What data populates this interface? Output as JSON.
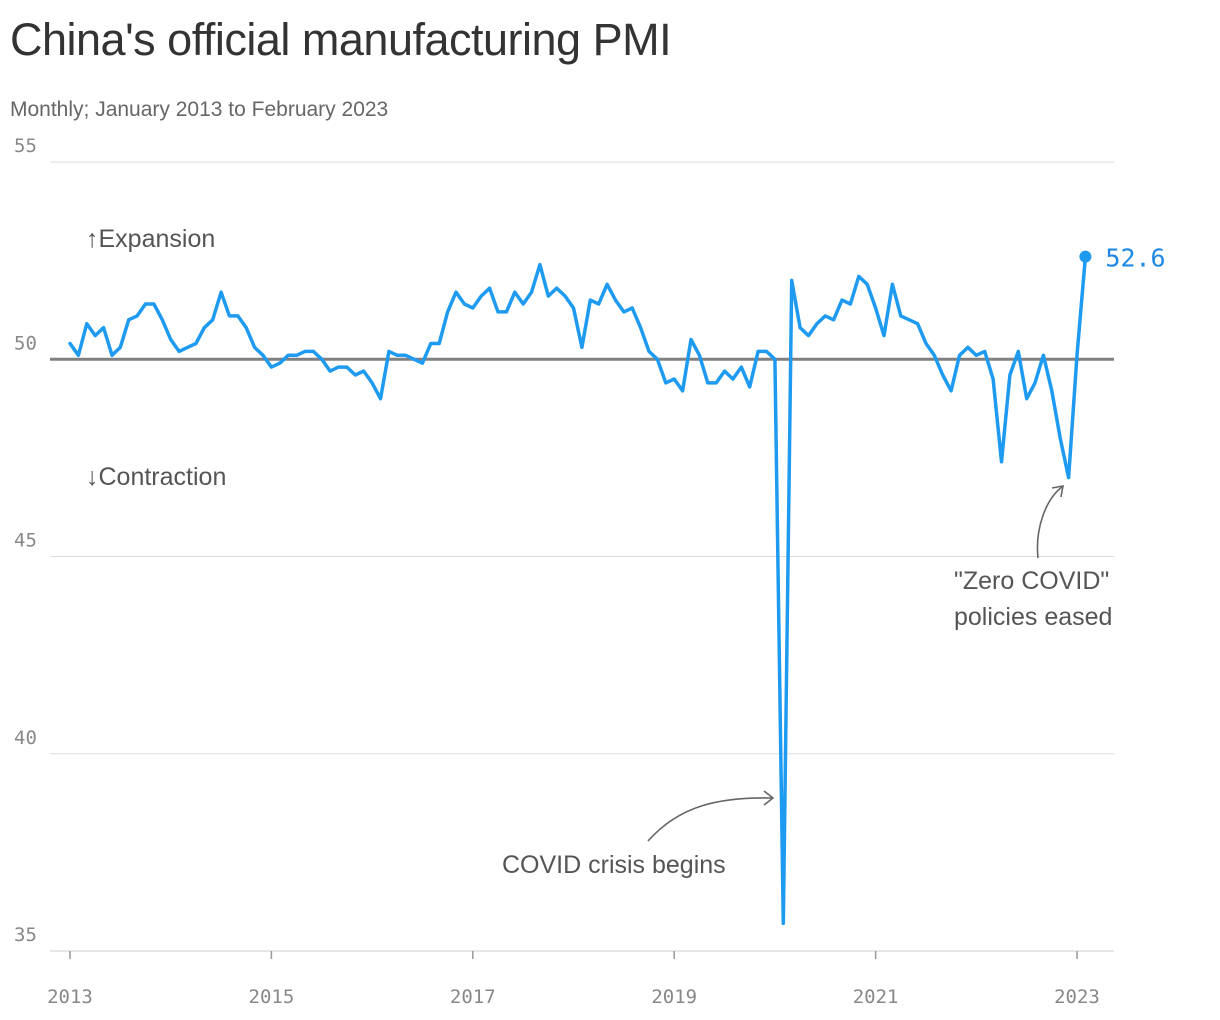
{
  "chart_data": {
    "type": "line",
    "title": "China's official manufacturing PMI",
    "subtitle": "Monthly; January 2013 to February 2023",
    "ylim": [
      35,
      55
    ],
    "y_ticks": [
      35,
      40,
      45,
      50,
      55
    ],
    "x_ticks": [
      {
        "year": 2013,
        "label": "2013"
      },
      {
        "year": 2015,
        "label": "2015"
      },
      {
        "year": 2017,
        "label": "2017"
      },
      {
        "year": 2019,
        "label": "2019"
      },
      {
        "year": 2021,
        "label": "2021"
      },
      {
        "year": 2023,
        "label": "2023"
      }
    ],
    "reference_value": 50,
    "grid": true,
    "series": [
      {
        "color": "#1e9bf0",
        "start": "2013-01",
        "end": "2023-02",
        "values": [
          50.4,
          50.1,
          50.9,
          50.6,
          50.8,
          50.1,
          50.3,
          51.0,
          51.1,
          51.4,
          51.4,
          51.0,
          50.5,
          50.2,
          50.3,
          50.4,
          50.8,
          51.0,
          51.7,
          51.1,
          51.1,
          50.8,
          50.3,
          50.1,
          49.8,
          49.9,
          50.1,
          50.1,
          50.2,
          50.2,
          50.0,
          49.7,
          49.8,
          49.8,
          49.6,
          49.7,
          49.4,
          49.0,
          50.2,
          50.1,
          50.1,
          50.0,
          49.9,
          50.4,
          50.4,
          51.2,
          51.7,
          51.4,
          51.3,
          51.6,
          51.8,
          51.2,
          51.2,
          51.7,
          51.4,
          51.7,
          52.4,
          51.6,
          51.8,
          51.6,
          51.3,
          50.3,
          51.5,
          51.4,
          51.9,
          51.5,
          51.2,
          51.3,
          50.8,
          50.2,
          50.0,
          49.4,
          49.5,
          49.2,
          50.5,
          50.1,
          49.4,
          49.4,
          49.7,
          49.5,
          49.8,
          49.3,
          50.2,
          50.2,
          50.0,
          35.7,
          52.0,
          50.8,
          50.6,
          50.9,
          51.1,
          51.0,
          51.5,
          51.4,
          52.1,
          51.9,
          51.3,
          50.6,
          51.9,
          51.1,
          51.0,
          50.9,
          50.4,
          50.1,
          49.6,
          49.2,
          50.1,
          50.3,
          50.1,
          50.2,
          49.5,
          47.4,
          49.6,
          50.2,
          49.0,
          49.4,
          50.1,
          49.2,
          48.0,
          47.0,
          50.1,
          52.6
        ]
      }
    ],
    "end_label": "52.6",
    "annotations": {
      "expansion": "↑Expansion",
      "contraction": "↓Contraction",
      "covid": "COVID crisis begins",
      "zero_covid_line1": "\"Zero COVID\"",
      "zero_covid_line2": "policies eased"
    }
  }
}
